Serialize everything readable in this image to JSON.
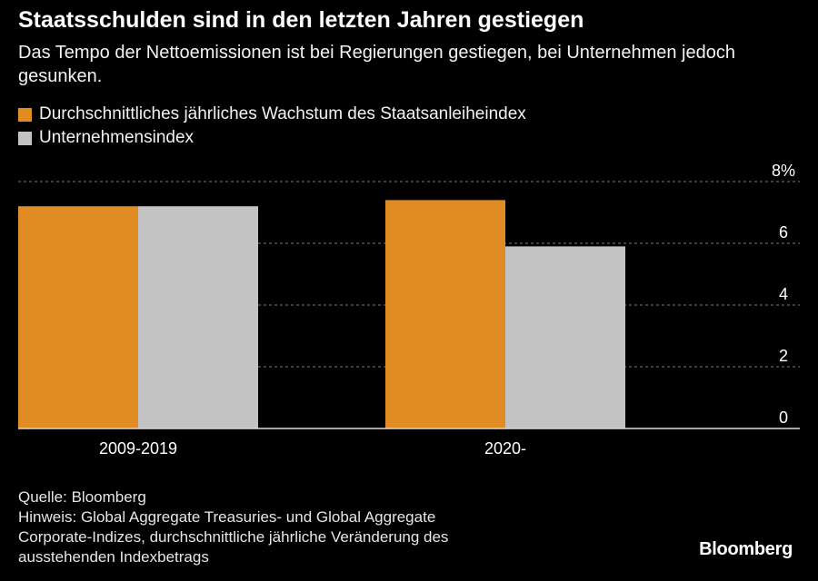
{
  "header": {
    "title": "Staatsschulden sind in den letzten Jahren gestiegen",
    "subtitle": "Das Tempo der Nettoemissionen ist bei Regierungen gestiegen, bei Unternehmen jedoch gesunken."
  },
  "chart_data": {
    "type": "bar",
    "categories": [
      "2009-2019",
      "2020-"
    ],
    "series": [
      {
        "name": "Durchschnittliches jährliches Wachstum des Staatsanleiheindex",
        "values": [
          7.2,
          7.4
        ],
        "color": "#e08c22"
      },
      {
        "name": "Unternehmensindex",
        "values": [
          7.2,
          5.9
        ],
        "color": "#c3c3c3"
      }
    ],
    "ylim": [
      0,
      8
    ],
    "yticks": [
      0,
      2,
      4,
      6,
      8
    ],
    "ytick_labels": [
      "0",
      "2",
      "4",
      "6",
      "8%"
    ],
    "grid": true,
    "legend_position": "top-left",
    "axis_position": "right"
  },
  "footer": {
    "source": "Quelle: Bloomberg",
    "note_lines": [
      "Hinweis: Global Aggregate Treasuries- und Global Aggregate",
      "Corporate-Indizes, durchschnittliche jährliche Veränderung des",
      "ausstehenden Indexbetrags"
    ]
  },
  "brand": "Bloomberg"
}
